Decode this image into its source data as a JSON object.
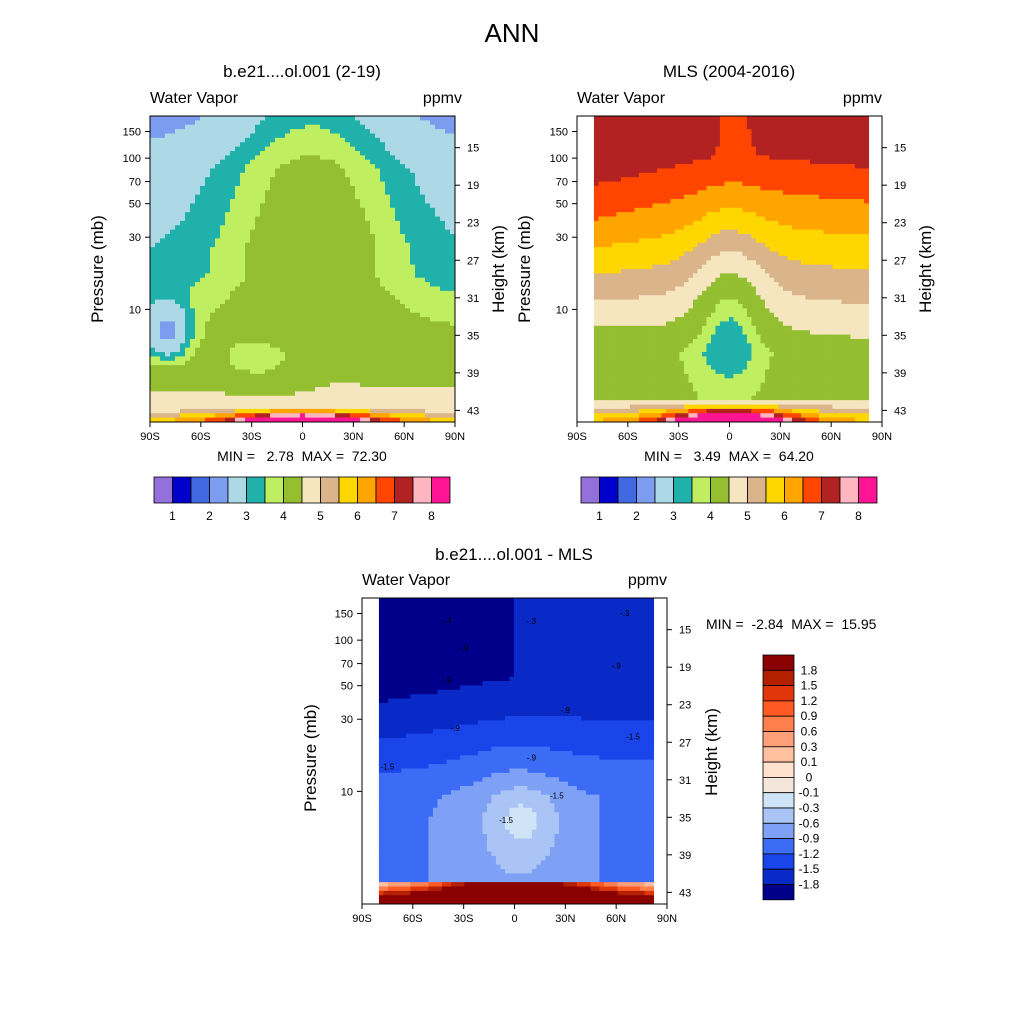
{
  "figure": {
    "title": "ANN"
  },
  "chart_data": [
    {
      "type": "heatmap",
      "id": "model",
      "title": "b.e21....ol.001 (2-19)",
      "left_label": "Water Vapor",
      "right_label": "ppmv",
      "xlabel": "",
      "ylabel": "Pressure (mb)",
      "y2label": "Height (km)",
      "x_ticks": [
        "90S",
        "60S",
        "30S",
        "0",
        "30N",
        "60N",
        "90N"
      ],
      "x_tick_values": [
        -90,
        -60,
        -30,
        0,
        30,
        60,
        90
      ],
      "y_ticks": [
        "10",
        "30",
        "50",
        "70",
        "100",
        "150"
      ],
      "y_tick_values": [
        10,
        30,
        50,
        70,
        100,
        150
      ],
      "y2_ticks": [
        "43",
        "39",
        "35",
        "31",
        "27",
        "23",
        "19",
        "15"
      ],
      "y2_tick_values": [
        43,
        39,
        35,
        31,
        27,
        23,
        19,
        15
      ],
      "xlim": [
        -90,
        90
      ],
      "ylim_mb": [
        190,
        1.8
      ],
      "stats": "MIN =   2.78  MAX =  72.30",
      "colorbar_labels": [
        "1",
        "2",
        "3",
        "4",
        "5",
        "6",
        "7",
        "8"
      ]
    },
    {
      "type": "heatmap",
      "id": "obs",
      "title": "MLS (2004-2016)",
      "left_label": "Water Vapor",
      "right_label": "ppmv",
      "xlabel": "",
      "ylabel": "Pressure (mb)",
      "y2label": "Height (km)",
      "x_ticks": [
        "90S",
        "60S",
        "30S",
        "0",
        "30N",
        "60N",
        "90N"
      ],
      "x_tick_values": [
        -90,
        -60,
        -30,
        0,
        30,
        60,
        90
      ],
      "y_ticks": [
        "10",
        "30",
        "50",
        "70",
        "100",
        "150"
      ],
      "y_tick_values": [
        10,
        30,
        50,
        70,
        100,
        150
      ],
      "y2_ticks": [
        "43",
        "39",
        "35",
        "31",
        "27",
        "23",
        "19",
        "15"
      ],
      "y2_tick_values": [
        43,
        39,
        35,
        31,
        27,
        23,
        19,
        15
      ],
      "xlim": [
        -90,
        90
      ],
      "data_xlim": [
        -80,
        82
      ],
      "ylim_mb": [
        190,
        1.8
      ],
      "stats": "MIN =   3.49  MAX =  64.20",
      "colorbar_labels": [
        "1",
        "2",
        "3",
        "4",
        "5",
        "6",
        "7",
        "8"
      ]
    },
    {
      "type": "heatmap",
      "id": "diff",
      "title": "b.e21....ol.001 - MLS",
      "left_label": "Water Vapor",
      "right_label": "ppmv",
      "xlabel": "",
      "ylabel": "Pressure (mb)",
      "y2label": "Height (km)",
      "x_ticks": [
        "90S",
        "60S",
        "30S",
        "0",
        "30N",
        "60N",
        "90N"
      ],
      "x_tick_values": [
        -90,
        -60,
        -30,
        0,
        30,
        60,
        90
      ],
      "y_ticks": [
        "10",
        "30",
        "50",
        "70",
        "100",
        "150"
      ],
      "y_tick_values": [
        10,
        30,
        50,
        70,
        100,
        150
      ],
      "y2_ticks": [
        "43",
        "39",
        "35",
        "31",
        "27",
        "23",
        "19",
        "15"
      ],
      "y2_tick_values": [
        43,
        39,
        35,
        31,
        27,
        23,
        19,
        15
      ],
      "xlim": [
        -90,
        90
      ],
      "data_xlim": [
        -80,
        82
      ],
      "ylim_mb": [
        190,
        1.8
      ],
      "stats": "MIN =  -2.84  MAX =  15.95",
      "contour_labels": [
        "-1.5",
        "-1.5",
        "-1.5",
        "-1.5",
        "-.9",
        "-.9",
        "-.9",
        "-.9",
        "-.9",
        "-.9",
        "-.3",
        "-.3",
        "-.3"
      ],
      "colorbar_labels": [
        "1.8",
        "1.5",
        "1.2",
        "0.9",
        "0.6",
        "0.3",
        "0.1",
        "0",
        "-0.1",
        "-0.3",
        "-0.6",
        "-0.9",
        "-1.2",
        "-1.5",
        "-1.8"
      ]
    }
  ],
  "colormaps": {
    "wv": [
      "#9370db",
      "#0000cd",
      "#4169e1",
      "#7b9cef",
      "#add8e6",
      "#20b2aa",
      "#bfef60",
      "#93bf31",
      "#f5e6c0",
      "#dab48a",
      "#ffd700",
      "#ffa500",
      "#ff4500",
      "#b22222",
      "#ffb6c1",
      "#ff1493"
    ],
    "diff": [
      "#8b0000",
      "#b22000",
      "#e0360a",
      "#ff5a24",
      "#ff7f4d",
      "#ffa07a",
      "#ffc0a0",
      "#ffe0cc",
      "#f5e6dc",
      "#cfe4f7",
      "#a9c4f5",
      "#7fa1f5",
      "#3c6cf5",
      "#1a45ea",
      "#0a2ac8",
      "#00008b"
    ]
  }
}
